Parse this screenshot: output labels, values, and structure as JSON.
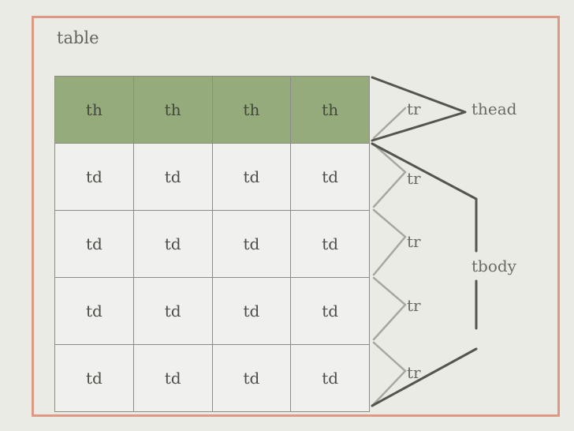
{
  "title": "table",
  "header_row": [
    "th",
    "th",
    "th",
    "th"
  ],
  "body_rows": [
    [
      "td",
      "td",
      "td",
      "td"
    ],
    [
      "td",
      "td",
      "td",
      "td"
    ],
    [
      "td",
      "td",
      "td",
      "td"
    ],
    [
      "td",
      "td",
      "td",
      "td"
    ]
  ],
  "row_labels": [
    "tr",
    "tr",
    "tr",
    "tr",
    "tr"
  ],
  "group_labels": {
    "thead": "thead",
    "tbody": "tbody"
  },
  "colors": {
    "header_fill": "#95ab7b",
    "cell_fill": "#f0f0ee",
    "frame_border": "#dc9a86"
  }
}
